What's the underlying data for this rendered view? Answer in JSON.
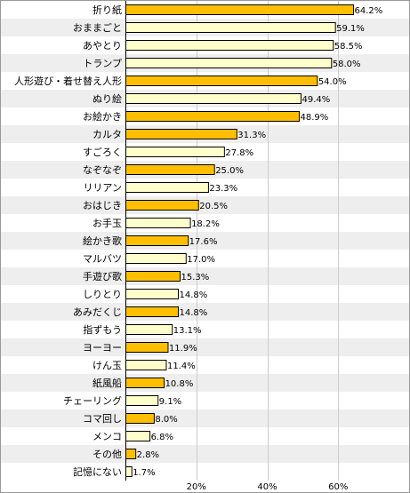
{
  "chart_data": {
    "type": "bar",
    "orientation": "horizontal",
    "categories": [
      "折り紙",
      "おままごと",
      "あやとり",
      "トランプ",
      "人形遊び・着せ替え人形",
      "ぬり絵",
      "お絵かき",
      "カルタ",
      "すごろく",
      "なぞなぞ",
      "リリアン",
      "おはじき",
      "お手玉",
      "絵かき歌",
      "マルバツ",
      "手遊び歌",
      "しりとり",
      "あみだくじ",
      "指ずもう",
      "ヨーヨー",
      "けん玉",
      "紙風船",
      "チェーリング",
      "コマ回し",
      "メンコ",
      "その他",
      "記憶にない"
    ],
    "values": [
      64.2,
      59.1,
      58.5,
      58.0,
      54.0,
      49.4,
      48.9,
      31.3,
      27.8,
      25.0,
      23.3,
      20.5,
      18.2,
      17.6,
      17.0,
      15.3,
      14.8,
      14.8,
      13.1,
      11.9,
      11.4,
      10.8,
      9.1,
      8.0,
      6.8,
      2.8,
      1.7
    ],
    "value_labels": [
      "64.2%",
      "59.1%",
      "58.5%",
      "58.0%",
      "54.0%",
      "49.4%",
      "48.9%",
      "31.3%",
      "27.8%",
      "25.0%",
      "23.3%",
      "20.5%",
      "18.2%",
      "17.6%",
      "17.0%",
      "15.3%",
      "14.8%",
      "14.8%",
      "13.1%",
      "11.9%",
      "11.4%",
      "10.8%",
      "9.1%",
      "8.0%",
      "6.8%",
      "2.8%",
      "1.7%"
    ],
    "bar_styles": [
      "orange",
      "light",
      "light",
      "light",
      "orange",
      "light",
      "orange",
      "orange",
      "light",
      "orange",
      "light",
      "orange",
      "light",
      "orange",
      "light",
      "orange",
      "light",
      "orange",
      "light",
      "orange",
      "light",
      "orange",
      "light",
      "orange",
      "light",
      "orange",
      "light"
    ],
    "xlim": [
      0,
      80
    ],
    "x_ticks": [
      20,
      40,
      60
    ],
    "x_tick_labels": [
      "20%",
      "40%",
      "60%"
    ],
    "grid": true,
    "colors": {
      "orange_fill": "#ffbf00",
      "light_fill": "#ffffcc",
      "bar_stroke": "#000000",
      "row_alt": "#eeeeee",
      "grid": "#cccccc",
      "border": "#999999"
    }
  }
}
